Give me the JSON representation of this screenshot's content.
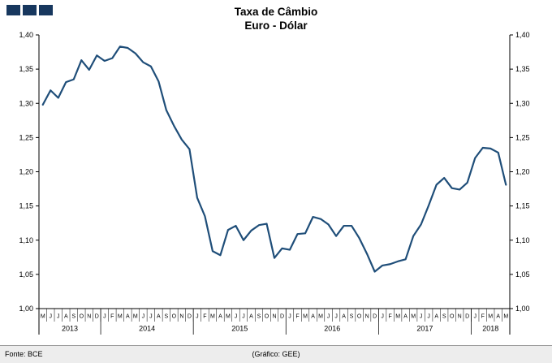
{
  "logo": {
    "square_count": 3,
    "color": "#17375E"
  },
  "title": {
    "line1": "Taxa de Câmbio",
    "line2": "Euro - Dólar"
  },
  "footer": {
    "source": "Fonte: BCE",
    "credit": "(Gráfico: GEE)"
  },
  "chart_data": {
    "type": "line",
    "title": "Taxa de Câmbio Euro - Dólar",
    "series_name": "EUR/USD",
    "series_color": "#1F4E79",
    "axis_color": "#000000",
    "ylim": [
      1.0,
      1.4
    ],
    "ytick_step": 0.05,
    "ytick_labels": [
      "1,00",
      "1,05",
      "1,10",
      "1,15",
      "1,20",
      "1,25",
      "1,30",
      "1,35",
      "1,40"
    ],
    "legend": "none",
    "grid": false,
    "months": [
      "M",
      "J",
      "J",
      "A",
      "S",
      "O",
      "N",
      "D",
      "J",
      "F",
      "M",
      "A",
      "M",
      "J",
      "J",
      "A",
      "S",
      "O",
      "N",
      "D",
      "J",
      "F",
      "M",
      "A",
      "M",
      "J",
      "J",
      "A",
      "S",
      "O",
      "N",
      "D",
      "J",
      "F",
      "M",
      "A",
      "M",
      "J",
      "J",
      "A",
      "S",
      "O",
      "N",
      "D",
      "J",
      "F",
      "M",
      "A",
      "M",
      "J",
      "J",
      "A",
      "S",
      "O",
      "N",
      "D",
      "J",
      "F",
      "M",
      "A",
      "M"
    ],
    "years": [
      {
        "label": "2013",
        "months": 8
      },
      {
        "label": "2014",
        "months": 12
      },
      {
        "label": "2015",
        "months": 12
      },
      {
        "label": "2016",
        "months": 12
      },
      {
        "label": "2017",
        "months": 12
      },
      {
        "label": "2018",
        "months": 5
      }
    ],
    "values": [
      1.298,
      1.319,
      1.308,
      1.331,
      1.335,
      1.363,
      1.349,
      1.37,
      1.362,
      1.366,
      1.383,
      1.381,
      1.373,
      1.36,
      1.354,
      1.332,
      1.29,
      1.267,
      1.247,
      1.233,
      1.162,
      1.135,
      1.084,
      1.078,
      1.115,
      1.121,
      1.1,
      1.114,
      1.122,
      1.124,
      1.074,
      1.088,
      1.086,
      1.109,
      1.11,
      1.134,
      1.131,
      1.123,
      1.106,
      1.121,
      1.121,
      1.103,
      1.08,
      1.054,
      1.063,
      1.065,
      1.069,
      1.072,
      1.106,
      1.123,
      1.151,
      1.181,
      1.191,
      1.176,
      1.174,
      1.184,
      1.22,
      1.235,
      1.234,
      1.228,
      1.181
    ]
  }
}
